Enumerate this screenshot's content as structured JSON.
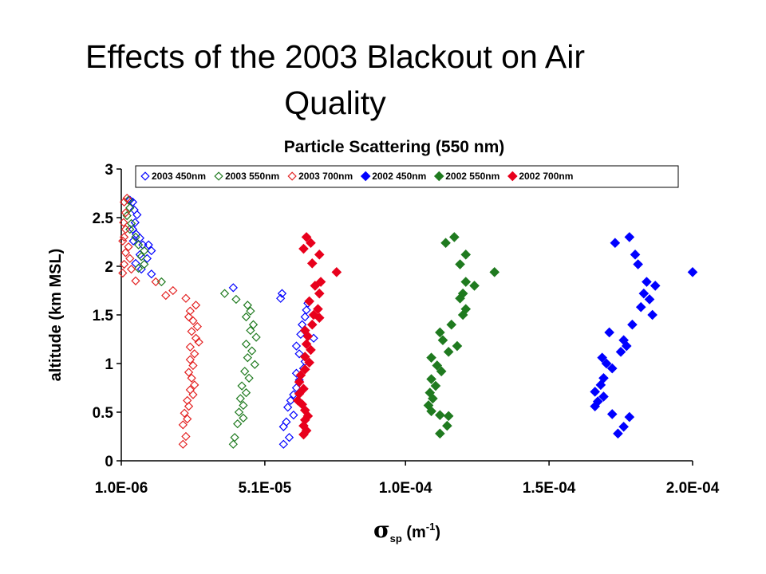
{
  "slide": {
    "title_line1": "Effects of the 2003 Blackout on Air",
    "title_line2": "Quality"
  },
  "chart_data": {
    "type": "scatter",
    "title": "Particle Scattering (550 nm)",
    "xlabel_main": "σ",
    "xlabel_sub": "sp",
    "xlabel_rest": " (m",
    "xlabel_sup": "-1",
    "xlabel_end": ")",
    "ylabel": "altitude (km MSL)",
    "xlim": [
      1e-06,
      0.0002
    ],
    "ylim": [
      0,
      3
    ],
    "x_ticks": [
      {
        "value": 1e-06,
        "label": "1.0E-06"
      },
      {
        "value": 5.1e-05,
        "label": "5.1E-05"
      },
      {
        "value": 0.0001,
        "label": "1.0E-04"
      },
      {
        "value": 0.00015,
        "label": "1.5E-04"
      },
      {
        "value": 0.0002,
        "label": "2.0E-04"
      }
    ],
    "y_ticks": [
      {
        "value": 0,
        "label": "0"
      },
      {
        "value": 0.5,
        "label": "0.5"
      },
      {
        "value": 1,
        "label": "1"
      },
      {
        "value": 1.5,
        "label": "1.5"
      },
      {
        "value": 2,
        "label": "2"
      },
      {
        "value": 2.5,
        "label": "2.5"
      },
      {
        "value": 3,
        "label": "3"
      }
    ],
    "grid": false,
    "legend_position": "top",
    "series": [
      {
        "name": "2003 450nm",
        "color": "#0000ff",
        "marker": "diamond-open",
        "points": [
          [
            4e-06,
            2.68
          ],
          [
            5e-06,
            2.66
          ],
          [
            5.5e-06,
            2.58
          ],
          [
            6.5e-06,
            2.53
          ],
          [
            5.8e-06,
            2.45
          ],
          [
            5e-06,
            2.38
          ],
          [
            6.2e-06,
            2.33
          ],
          [
            7.5e-06,
            2.29
          ],
          [
            5.2e-06,
            2.26
          ],
          [
            8.5e-06,
            2.22
          ],
          [
            1.05e-05,
            2.22
          ],
          [
            1.15e-05,
            2.16
          ],
          [
            7.5e-06,
            2.12
          ],
          [
            1e-05,
            2.08
          ],
          [
            6e-06,
            2.03
          ],
          [
            8e-06,
            1.97
          ],
          [
            1.15e-05,
            1.92
          ],
          [
            4e-05,
            1.78
          ],
          [
            5.7e-05,
            1.72
          ],
          [
            5.65e-05,
            1.67
          ],
          [
            6.6e-05,
            1.62
          ],
          [
            6.55e-05,
            1.55
          ],
          [
            6.5e-05,
            1.48
          ],
          [
            6.4e-05,
            1.4
          ],
          [
            6.35e-05,
            1.3
          ],
          [
            6.8e-05,
            1.26
          ],
          [
            6.2e-05,
            1.18
          ],
          [
            6.3e-05,
            1.1
          ],
          [
            6.5e-05,
            1.02
          ],
          [
            6.45e-05,
            0.95
          ],
          [
            6.2e-05,
            0.9
          ],
          [
            6.3e-05,
            0.83
          ],
          [
            6.2e-05,
            0.75
          ],
          [
            6.1e-05,
            0.68
          ],
          [
            6e-05,
            0.62
          ],
          [
            5.9e-05,
            0.55
          ],
          [
            6.1e-05,
            0.47
          ],
          [
            5.85e-05,
            0.4
          ],
          [
            5.75e-05,
            0.35
          ],
          [
            5.95e-05,
            0.24
          ],
          [
            5.75e-05,
            0.17
          ]
        ]
      },
      {
        "name": "2003 550nm",
        "color": "#1f7a1f",
        "marker": "diamond-open",
        "points": [
          [
            3.5e-06,
            2.68
          ],
          [
            4e-06,
            2.6
          ],
          [
            3e-06,
            2.52
          ],
          [
            4.5e-06,
            2.44
          ],
          [
            4e-06,
            2.38
          ],
          [
            6e-06,
            2.3
          ],
          [
            7e-06,
            2.22
          ],
          [
            9e-06,
            2.16
          ],
          [
            8e-06,
            2.1
          ],
          [
            9e-06,
            2.02
          ],
          [
            7e-06,
            1.98
          ],
          [
            1.5e-05,
            1.84
          ],
          [
            3.7e-05,
            1.72
          ],
          [
            4.1e-05,
            1.66
          ],
          [
            4.5e-05,
            1.6
          ],
          [
            4.6e-05,
            1.54
          ],
          [
            4.45e-05,
            1.48
          ],
          [
            4.7e-05,
            1.4
          ],
          [
            4.6e-05,
            1.34
          ],
          [
            4.8e-05,
            1.27
          ],
          [
            4.45e-05,
            1.2
          ],
          [
            4.65e-05,
            1.13
          ],
          [
            4.5e-05,
            1.06
          ],
          [
            4.75e-05,
            0.99
          ],
          [
            4.4e-05,
            0.92
          ],
          [
            4.55e-05,
            0.85
          ],
          [
            4.3e-05,
            0.77
          ],
          [
            4.45e-05,
            0.7
          ],
          [
            4.25e-05,
            0.64
          ],
          [
            4.35e-05,
            0.57
          ],
          [
            4.2e-05,
            0.5
          ],
          [
            4.35e-05,
            0.44
          ],
          [
            4.15e-05,
            0.38
          ],
          [
            4.05e-05,
            0.24
          ],
          [
            4e-05,
            0.17
          ]
        ]
      },
      {
        "name": "2003 700nm",
        "color": "#e32222",
        "marker": "diamond-open",
        "points": [
          [
            2e-06,
            2.66
          ],
          [
            3e-06,
            2.7
          ],
          [
            2.5e-06,
            2.55
          ],
          [
            1.8e-06,
            2.45
          ],
          [
            2.5e-06,
            2.38
          ],
          [
            2e-06,
            2.3
          ],
          [
            1.5e-06,
            2.26
          ],
          [
            3.5e-06,
            2.2
          ],
          [
            2.5e-06,
            2.14
          ],
          [
            4e-06,
            2.08
          ],
          [
            2e-06,
            2.02
          ],
          [
            4.5e-06,
            1.97
          ],
          [
            1.5e-06,
            1.93
          ],
          [
            6e-06,
            1.85
          ],
          [
            1.3e-05,
            1.84
          ],
          [
            1.9e-05,
            1.75
          ],
          [
            1.65e-05,
            1.7
          ],
          [
            2.35e-05,
            1.67
          ],
          [
            2.7e-05,
            1.6
          ],
          [
            2.5e-05,
            1.54
          ],
          [
            2.45e-05,
            1.48
          ],
          [
            2.6e-05,
            1.44
          ],
          [
            2.75e-05,
            1.38
          ],
          [
            2.55e-05,
            1.33
          ],
          [
            2.7e-05,
            1.26
          ],
          [
            2.8e-05,
            1.22
          ],
          [
            2.5e-05,
            1.17
          ],
          [
            2.65e-05,
            1.1
          ],
          [
            2.5e-05,
            1.04
          ],
          [
            2.6e-05,
            0.98
          ],
          [
            2.45e-05,
            0.91
          ],
          [
            2.55e-05,
            0.85
          ],
          [
            2.65e-05,
            0.78
          ],
          [
            2.5e-05,
            0.73
          ],
          [
            2.6e-05,
            0.68
          ],
          [
            2.4e-05,
            0.62
          ],
          [
            2.45e-05,
            0.56
          ],
          [
            2.3e-05,
            0.49
          ],
          [
            2.4e-05,
            0.43
          ],
          [
            2.25e-05,
            0.37
          ],
          [
            2.35e-05,
            0.25
          ],
          [
            2.25e-05,
            0.17
          ]
        ]
      },
      {
        "name": "2002 450nm",
        "color": "#0000ff",
        "marker": "diamond-filled",
        "points": [
          [
            0.000178,
            2.3
          ],
          [
            0.000173,
            2.24
          ],
          [
            0.00018,
            2.12
          ],
          [
            0.000181,
            2.02
          ],
          [
            0.0002,
            1.94
          ],
          [
            0.000184,
            1.84
          ],
          [
            0.000187,
            1.8
          ],
          [
            0.000183,
            1.72
          ],
          [
            0.000185,
            1.66
          ],
          [
            0.000182,
            1.58
          ],
          [
            0.000186,
            1.5
          ],
          [
            0.000179,
            1.4
          ],
          [
            0.000171,
            1.32
          ],
          [
            0.000176,
            1.24
          ],
          [
            0.000177,
            1.18
          ],
          [
            0.000175,
            1.12
          ],
          [
            0.0001685,
            1.06
          ],
          [
            0.00017,
            1.0
          ],
          [
            0.000172,
            0.95
          ],
          [
            0.000169,
            0.85
          ],
          [
            0.000168,
            0.78
          ],
          [
            0.000166,
            0.71
          ],
          [
            0.000169,
            0.66
          ],
          [
            0.000167,
            0.61
          ],
          [
            0.000166,
            0.56
          ],
          [
            0.000172,
            0.48
          ],
          [
            0.000178,
            0.45
          ],
          [
            0.000176,
            0.35
          ],
          [
            0.000174,
            0.28
          ]
        ]
      },
      {
        "name": "2002 550nm",
        "color": "#1f7a1f",
        "marker": "diamond-filled",
        "points": [
          [
            0.000117,
            2.3
          ],
          [
            0.000114,
            2.24
          ],
          [
            0.000121,
            2.12
          ],
          [
            0.000119,
            2.02
          ],
          [
            0.000131,
            1.94
          ],
          [
            0.000121,
            1.84
          ],
          [
            0.000124,
            1.8
          ],
          [
            0.00012,
            1.72
          ],
          [
            0.000119,
            1.67
          ],
          [
            0.000121,
            1.56
          ],
          [
            0.00012,
            1.5
          ],
          [
            0.000116,
            1.4
          ],
          [
            0.000112,
            1.32
          ],
          [
            0.000113,
            1.24
          ],
          [
            0.000118,
            1.18
          ],
          [
            0.000115,
            1.12
          ],
          [
            0.000109,
            1.06
          ],
          [
            0.000111,
            0.98
          ],
          [
            0.0001125,
            0.92
          ],
          [
            0.000109,
            0.84
          ],
          [
            0.0001105,
            0.77
          ],
          [
            0.0001085,
            0.7
          ],
          [
            0.0001095,
            0.64
          ],
          [
            0.000108,
            0.57
          ],
          [
            0.000109,
            0.51
          ],
          [
            0.000115,
            0.46
          ],
          [
            0.000112,
            0.47
          ],
          [
            0.0001145,
            0.36
          ],
          [
            0.000112,
            0.28
          ]
        ]
      },
      {
        "name": "2002 700nm",
        "color": "#e8001c",
        "marker": "diamond-filled",
        "points": [
          [
            6.55e-05,
            2.3
          ],
          [
            6.7e-05,
            2.24
          ],
          [
            6.45e-05,
            2.18
          ],
          [
            7e-05,
            2.12
          ],
          [
            6.75e-05,
            2.03
          ],
          [
            7.6e-05,
            1.94
          ],
          [
            7.05e-05,
            1.84
          ],
          [
            6.85e-05,
            1.8
          ],
          [
            7e-05,
            1.72
          ],
          [
            6.65e-05,
            1.64
          ],
          [
            6.95e-05,
            1.56
          ],
          [
            6.8e-05,
            1.5
          ],
          [
            7e-05,
            1.47
          ],
          [
            6.75e-05,
            1.4
          ],
          [
            6.5e-05,
            1.34
          ],
          [
            6.6e-05,
            1.28
          ],
          [
            6.55e-05,
            1.2
          ],
          [
            6.7e-05,
            1.14
          ],
          [
            6.5e-05,
            1.07
          ],
          [
            6.65e-05,
            1.01
          ],
          [
            6.5e-05,
            0.94
          ],
          [
            6.35e-05,
            0.88
          ],
          [
            6.3e-05,
            0.81
          ],
          [
            6.45e-05,
            0.74
          ],
          [
            6.3e-05,
            0.69
          ],
          [
            6.25e-05,
            0.62
          ],
          [
            6.4e-05,
            0.58
          ],
          [
            6.5e-05,
            0.52
          ],
          [
            6.6e-05,
            0.46
          ],
          [
            6.5e-05,
            0.42
          ],
          [
            6.45e-05,
            0.36
          ],
          [
            6.55e-05,
            0.31
          ],
          [
            6.45e-05,
            0.27
          ]
        ]
      }
    ]
  }
}
